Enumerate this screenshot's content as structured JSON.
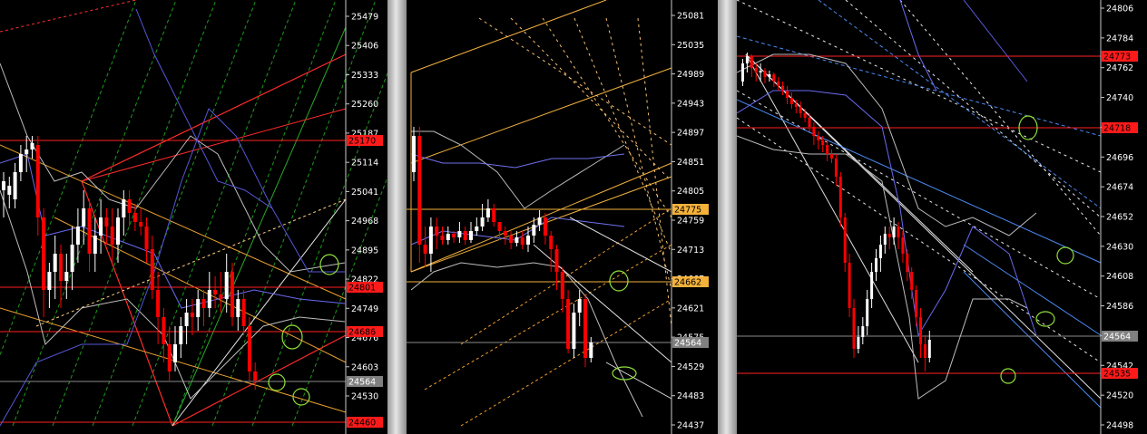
{
  "charts": [
    {
      "axis_labels": [
        "25479",
        "25406",
        "25333",
        "25260",
        "25187",
        "25114",
        "25041",
        "24968",
        "24895",
        "24822",
        "24749",
        "24676",
        "24603",
        "24530"
      ],
      "price_tags": [
        {
          "text": "25170",
          "color": "#ff1a1a",
          "text_color": "#000000"
        },
        {
          "text": "24801",
          "color": "#ff1a1a",
          "text_color": "#000000"
        },
        {
          "text": "24686",
          "color": "#ff1a1a",
          "text_color": "#000000"
        },
        {
          "text": "24564",
          "color": "#808080",
          "text_color": "#ffffff"
        },
        {
          "text": "24460",
          "color": "#ff1a1a",
          "text_color": "#000000"
        }
      ]
    },
    {
      "axis_labels": [
        "25081",
        "25035",
        "24989",
        "24943",
        "24897",
        "24851",
        "24805",
        "24759",
        "24713",
        "24667",
        "24621",
        "24575",
        "24529",
        "24483",
        "24437"
      ],
      "price_tags": [
        {
          "text": "24775",
          "color": "#f4b23a",
          "text_color": "#000000"
        },
        {
          "text": "24662",
          "color": "#f4b23a",
          "text_color": "#000000"
        },
        {
          "text": "24564",
          "color": "#808080",
          "text_color": "#ffffff"
        }
      ]
    },
    {
      "axis_labels": [
        "24806",
        "24784",
        "24762",
        "24740",
        "24718",
        "24696",
        "24674",
        "24652",
        "24630",
        "24608",
        "24586",
        "24564",
        "24542",
        "24520",
        "24498"
      ],
      "price_tags": [
        {
          "text": "24773",
          "color": "#ff1a1a",
          "text_color": "#000000"
        },
        {
          "text": "24718",
          "color": "#ff1a1a",
          "text_color": "#000000"
        },
        {
          "text": "24564",
          "color": "#808080",
          "text_color": "#ffffff"
        },
        {
          "text": "24535",
          "color": "#ff1a1a",
          "text_color": "#000000"
        }
      ]
    }
  ],
  "colors": {
    "up_candle": "#ffffff",
    "down_candle": "#ff0000",
    "axis_text": "#ffffff",
    "background": "#000000"
  }
}
